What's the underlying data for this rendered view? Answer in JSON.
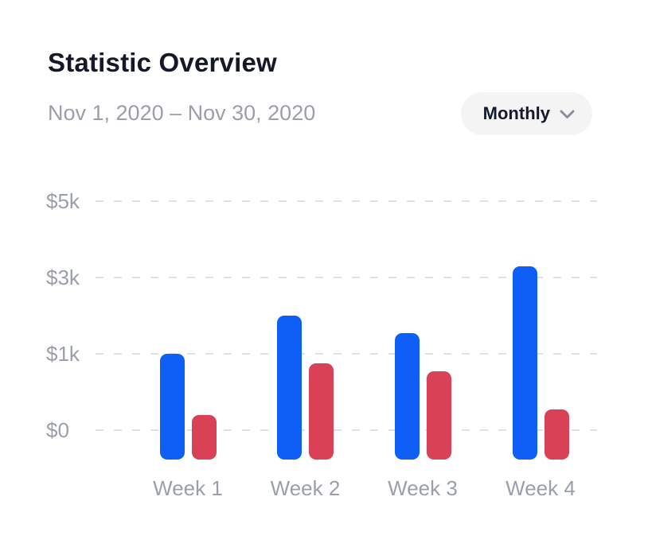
{
  "header": {
    "title": "Statistic Overview",
    "date_range": "Nov 1, 2020 – Nov 30, 2020",
    "period_selector": {
      "label": "Monthly",
      "icon": "chevron-down-icon"
    }
  },
  "chart_data": {
    "type": "bar",
    "title": "Statistic Overview",
    "subtitle": "Nov 1, 2020 – Nov 30, 2020",
    "categories": [
      "Week 1",
      "Week 2",
      "Week 3",
      "Week 4"
    ],
    "series": [
      {
        "name": "blue",
        "color": "#0E5FF6",
        "values": [
          1000,
          2000,
          1550,
          3300
        ]
      },
      {
        "name": "red",
        "color": "#D94256",
        "values": [
          200,
          870,
          770,
          270
        ]
      }
    ],
    "y_axis": {
      "tick_values": [
        0,
        1000,
        3000,
        5000
      ],
      "tick_labels": [
        "$0",
        "$1k",
        "$3k",
        "$5k"
      ],
      "range": [
        0,
        5000
      ],
      "gridlines": "dashed",
      "tick_spacing": "equal"
    },
    "legend": "none"
  }
}
